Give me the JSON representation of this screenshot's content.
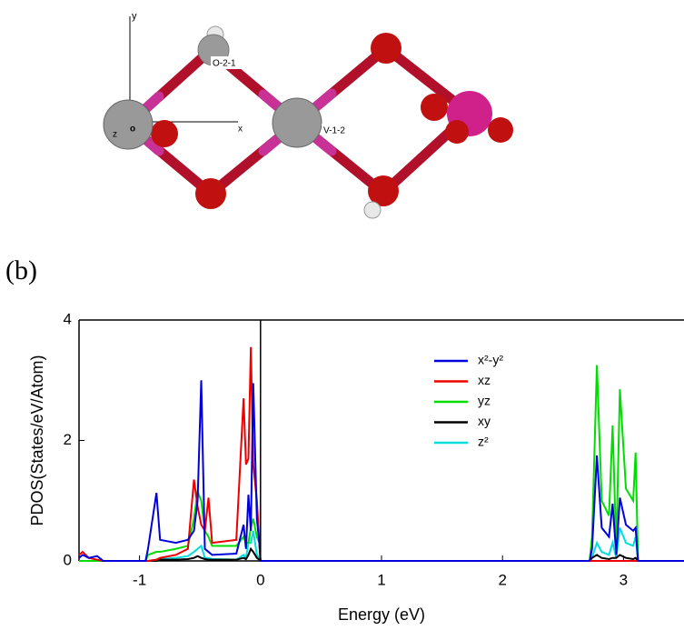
{
  "structure": {
    "labels": [
      "y",
      "O-2-1",
      "z",
      "o",
      "x",
      "V-1-2"
    ]
  },
  "panel_label": "(b)",
  "chart_data": {
    "type": "line",
    "x_label": "Energy (eV)",
    "y_label": "PDOS(States/eV/Atom)",
    "x": [
      -1.5,
      -1.47,
      -1.42,
      -1.35,
      -1.3,
      -0.95,
      -0.93,
      -0.86,
      -0.83,
      -0.7,
      -0.6,
      -0.55,
      -0.52,
      -0.49,
      -0.46,
      -0.43,
      -0.4,
      -0.2,
      -0.14,
      -0.12,
      -0.1,
      -0.08,
      -0.06,
      -0.03,
      -0.01,
      0,
      2.72,
      2.74,
      2.78,
      2.82,
      2.88,
      2.91,
      2.94,
      2.97,
      3.02,
      3.08,
      3.1,
      3.12,
      3.5
    ],
    "series": [
      {
        "name": "x²-y²",
        "color": "#0000dd",
        "values": [
          0.05,
          0.1,
          0.05,
          0.08,
          0,
          0,
          0.2,
          1.13,
          0.35,
          0.3,
          0.35,
          0.5,
          1.0,
          3.0,
          0.2,
          0.15,
          0.1,
          0.12,
          0.6,
          0.2,
          1.1,
          0.5,
          2.95,
          0.7,
          0.3,
          0,
          0,
          0.2,
          1.75,
          0.55,
          0.4,
          0.95,
          0.1,
          1.05,
          0.6,
          0.5,
          0.55,
          0,
          0
        ]
      },
      {
        "name": "xz",
        "color": "#ee0000",
        "values": [
          0.1,
          0.15,
          0.05,
          0.02,
          0,
          0,
          0,
          0.02,
          0.05,
          0.1,
          0.2,
          1.35,
          0.9,
          0.6,
          0.5,
          1.05,
          0.3,
          0.35,
          2.7,
          1.6,
          1.7,
          3.55,
          1.6,
          1.0,
          0.3,
          0,
          0,
          0,
          0,
          0,
          0,
          0,
          0,
          0,
          0,
          0,
          0,
          0,
          0
        ]
      },
      {
        "name": "yz",
        "color": "#00dd00",
        "values": [
          0,
          0,
          0,
          0,
          0,
          0,
          0.1,
          0.15,
          0.15,
          0.2,
          0.25,
          0.7,
          1.15,
          1.0,
          0.5,
          0.4,
          0.25,
          0.25,
          0.4,
          0.3,
          0.3,
          0.55,
          0.7,
          0.4,
          0.3,
          0,
          0,
          0.4,
          3.25,
          1.0,
          0.75,
          2.25,
          0.2,
          2.85,
          1.2,
          1.0,
          1.8,
          0,
          0
        ]
      },
      {
        "name": "xy",
        "color": "#000000",
        "values": [
          0,
          0,
          0,
          0,
          0,
          0,
          0,
          0,
          0.02,
          0.02,
          0.03,
          0.05,
          0.08,
          0.05,
          0.03,
          0.02,
          0.02,
          0.02,
          0.05,
          0.03,
          0.1,
          0.2,
          0.15,
          0.05,
          0.02,
          0,
          0,
          0.05,
          0.1,
          0.05,
          0.03,
          0.05,
          0.05,
          0.1,
          0.05,
          0.03,
          0.05,
          0,
          0
        ]
      },
      {
        "name": "z²",
        "color": "#00dddd",
        "values": [
          0,
          0,
          0,
          0,
          0,
          0,
          0,
          0.02,
          0.03,
          0.05,
          0.08,
          0.15,
          0.2,
          0.25,
          0.05,
          0.05,
          0.03,
          0.02,
          0.1,
          0.05,
          0.3,
          0.3,
          0.5,
          0.1,
          0.05,
          0,
          0,
          0.05,
          0.3,
          0.15,
          0.1,
          0.3,
          0.05,
          0.55,
          0.3,
          0.25,
          0.4,
          0,
          0
        ]
      }
    ],
    "xlim": [
      -1.5,
      3.5
    ],
    "ylim": [
      0,
      4
    ],
    "xticks": [
      -1,
      0,
      1,
      2,
      3
    ],
    "yticks": [
      0,
      2,
      4
    ],
    "reference_line_x": 0
  }
}
